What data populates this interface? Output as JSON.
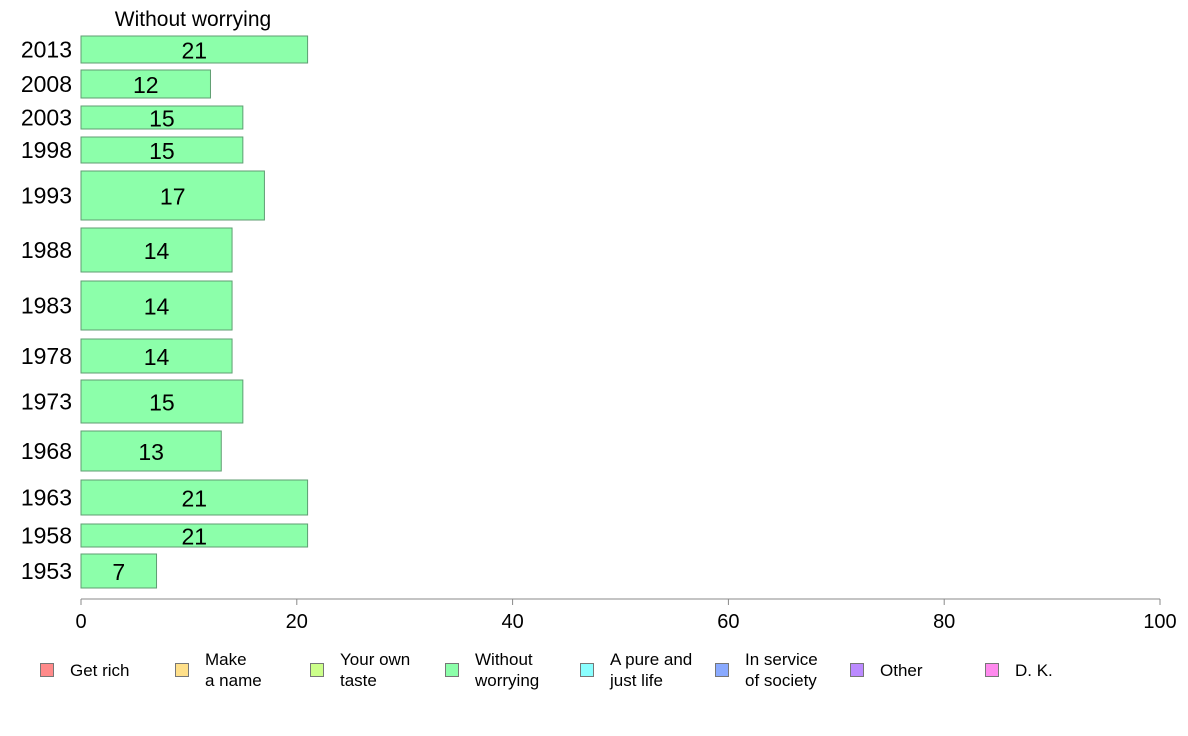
{
  "chart_data": {
    "type": "bar",
    "orientation": "horizontal",
    "title": "Without worrying",
    "categories": [
      "2013",
      "2008",
      "2003",
      "1998",
      "1993",
      "1988",
      "1983",
      "1978",
      "1973",
      "1968",
      "1963",
      "1958",
      "1953"
    ],
    "values": [
      21,
      12,
      15,
      15,
      17,
      14,
      14,
      14,
      15,
      13,
      21,
      21,
      7
    ],
    "xlim": [
      0,
      100
    ],
    "xticks": [
      0,
      20,
      40,
      60,
      80,
      100
    ],
    "grid": false,
    "legend_position": "bottom",
    "series_color": "#8cffaa"
  },
  "legend": [
    {
      "label": "Get rich",
      "color": "#ff8a8a"
    },
    {
      "label": "Make\na name",
      "color": "#ffe08a"
    },
    {
      "label": "Your own\ntaste",
      "color": "#ccff8a"
    },
    {
      "label": "Without\nworrying",
      "color": "#8cffaa"
    },
    {
      "label": "A pure and\njust life",
      "color": "#8affff"
    },
    {
      "label": "In service\nof society",
      "color": "#8aaaff"
    },
    {
      "label": "Other",
      "color": "#bb8aff"
    },
    {
      "label": "D. K.",
      "color": "#ff8aee"
    }
  ]
}
